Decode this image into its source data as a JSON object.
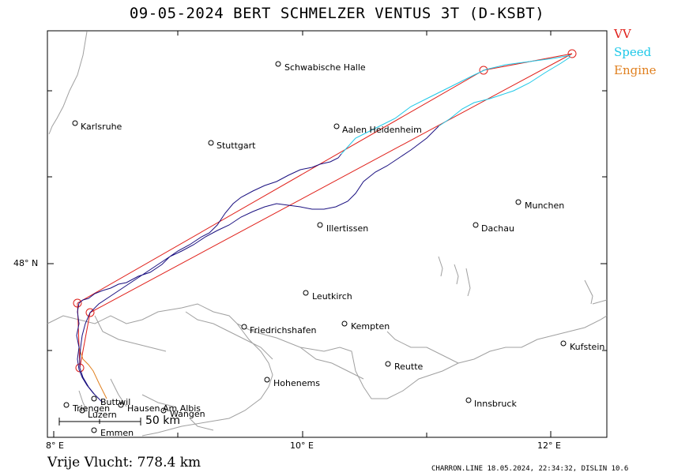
{
  "header": {
    "title": "09-05-2024   BERT SCHMELZER   VENTUS 3T (D-KSBT)"
  },
  "legend": {
    "vv": "VV",
    "speed": "Speed",
    "engine": "Engine"
  },
  "colors": {
    "vv": "#e0201a",
    "speed": "#1ec8e8",
    "engine": "#e08020",
    "track": "#1a1080",
    "borders": "#a0a0a0"
  },
  "axes": {
    "x_ticks": [
      "8° E",
      "10° E",
      "12° E"
    ],
    "y_ticks": [
      "48° N"
    ]
  },
  "cities": [
    "Schwabische Halle",
    "Karlsruhe",
    "Aalen Heidenheim",
    "Stuttgart",
    "Munchen",
    "Illertissen",
    "Dachau",
    "Leutkirch",
    "Friedrichshafen",
    "Kempten",
    "Kufstein",
    "Reutte",
    "Hohenems",
    "Innsbruck",
    "Buttwil",
    "Triengen",
    "Hausen Am Albis",
    "Luzern",
    "Wangen",
    "Emmen"
  ],
  "scale": {
    "label": "50 km"
  },
  "footer": {
    "distance": "Vrije Vlucht:  778.4 km",
    "info": "CHARRON.LINE 18.05.2024, 22:34:32, DISLIN 10.6"
  }
}
